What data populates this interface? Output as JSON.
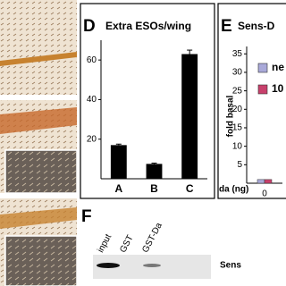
{
  "chart_data": [
    {
      "type": "bar",
      "panel": "D",
      "title": "Extra ESOs/wing",
      "categories": [
        "A",
        "B",
        "C"
      ],
      "values": [
        17,
        7.5,
        63
      ],
      "errors": [
        0.5,
        0.4,
        2
      ],
      "color": "#000000",
      "ylim": [
        0,
        70
      ],
      "yticks": [
        20,
        40,
        60
      ]
    },
    {
      "type": "grouped-bar",
      "panel": "E",
      "title": "Sens-D",
      "ylabel": "fold basal",
      "xlabel": "da (ng)",
      "categories": [
        "0"
      ],
      "series": [
        {
          "name": "ne",
          "color": "#a9a9d9",
          "values": [
            1
          ]
        },
        {
          "name": "10",
          "color": "#c8406c",
          "values": [
            1
          ]
        }
      ],
      "ylim": [
        0,
        37
      ],
      "yticks": [
        5,
        10,
        15,
        20,
        25,
        30,
        35
      ]
    }
  ],
  "gel": {
    "panel": "F",
    "lanes": [
      "input",
      "GST",
      "GST-Da"
    ],
    "band_label": "Sens"
  }
}
